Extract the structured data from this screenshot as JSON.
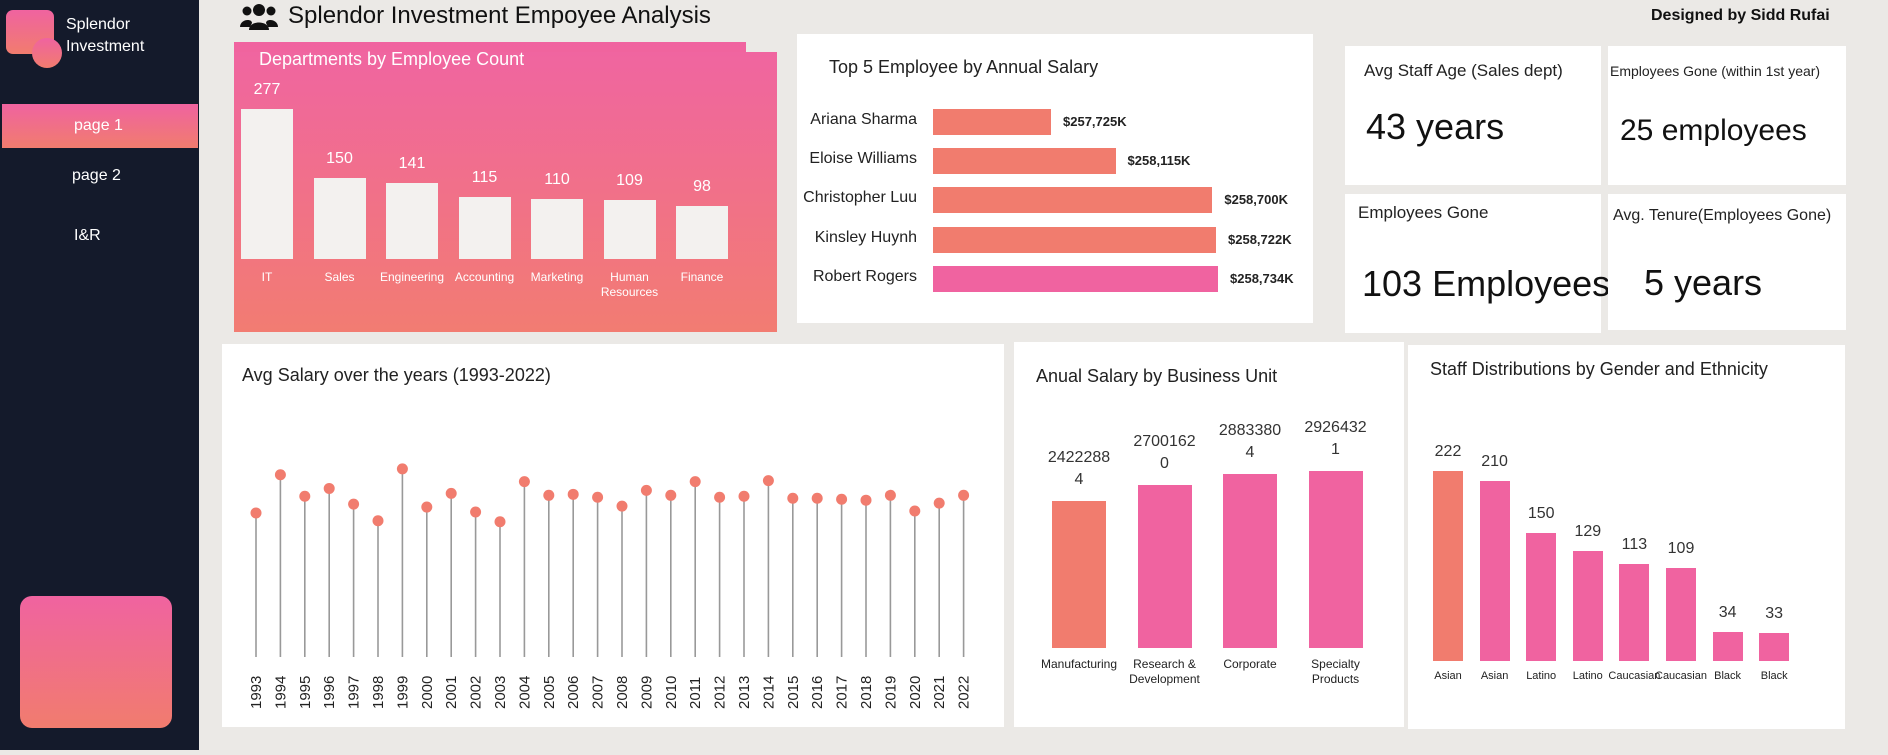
{
  "sidebar": {
    "brand_line1": "Splendor",
    "brand_line2": "Investment",
    "nav": [
      "page 1",
      "page 2",
      "I&R"
    ]
  },
  "header": {
    "icon": "users-icon",
    "title": "Splendor Investment Empoyee Analysis",
    "designer": "Designed by Sidd Rufai"
  },
  "colors": {
    "pink": "#f063a0",
    "coral": "#f17c6e",
    "navy": "#141a2b"
  },
  "kpis": [
    {
      "label": "Avg Staff Age (Sales dept)",
      "value": "43 years"
    },
    {
      "label": "Employees Gone (within 1st year)",
      "value": "25 employees"
    },
    {
      "label": "Employees Gone",
      "value": "103 Employees"
    },
    {
      "label": "Avg. Tenure(Employees Gone)",
      "value": "5 years"
    }
  ],
  "chart_data": [
    {
      "type": "bar",
      "title": "Departments by Employee  Count",
      "categories": [
        "IT",
        "Sales",
        "Engineering",
        "Accounting",
        "Marketing",
        "Human Resources",
        "Finance"
      ],
      "values": [
        277,
        150,
        141,
        115,
        110,
        109,
        98
      ]
    },
    {
      "type": "bar",
      "orientation": "horizontal",
      "title": "Top 5 Employee by Annual Salary",
      "categories": [
        "Ariana Sharma",
        "Eloise Williams",
        "Christopher Luu",
        "Kinsley Huynh",
        "Robert Rogers"
      ],
      "values": [
        257725,
        258115,
        258700,
        258722,
        258734
      ],
      "labels": [
        "$257,725K",
        "$258,115K",
        "$258,700K",
        "$258,722K",
        "$258,734K"
      ]
    },
    {
      "type": "scatter",
      "style": "lollipop",
      "title": "Avg Salary over the years (1993-2022)",
      "x": [
        "1993",
        "1994",
        "1995",
        "1996",
        "1997",
        "1998",
        "1999",
        "2000",
        "2001",
        "2002",
        "2003",
        "2004",
        "2005",
        "2006",
        "2007",
        "2008",
        "2009",
        "2010",
        "2011",
        "2012",
        "2013",
        "2014",
        "2015",
        "2016",
        "2017",
        "2018",
        "2019",
        "2020",
        "2021",
        "2022"
      ],
      "y": [
        0.735,
        0.93,
        0.82,
        0.86,
        0.78,
        0.695,
        0.96,
        0.765,
        0.835,
        0.74,
        0.69,
        0.895,
        0.825,
        0.83,
        0.815,
        0.77,
        0.85,
        0.825,
        0.895,
        0.815,
        0.82,
        0.9,
        0.81,
        0.81,
        0.805,
        0.8,
        0.825,
        0.745,
        0.785,
        0.825
      ]
    },
    {
      "type": "bar",
      "title": "Anual Salary by Business Unit",
      "categories": [
        "Manufacturing",
        "Research & Development",
        "Corporate",
        "Specialty Products"
      ],
      "values": [
        24222884,
        27001620,
        28833804,
        29264321
      ],
      "labels": [
        [
          "2422288",
          "4"
        ],
        [
          "2700162",
          "0"
        ],
        [
          "2883380",
          "4"
        ],
        [
          "2926432",
          "1"
        ]
      ]
    },
    {
      "type": "bar",
      "title": "Staff Distributions  by Gender and Ethnicity",
      "categories": [
        "Asian",
        "Asian",
        "Latino",
        "Latino",
        "Caucasian",
        "Caucasian",
        "Black",
        "Black"
      ],
      "values": [
        222,
        210,
        150,
        129,
        113,
        109,
        34,
        33
      ]
    }
  ]
}
